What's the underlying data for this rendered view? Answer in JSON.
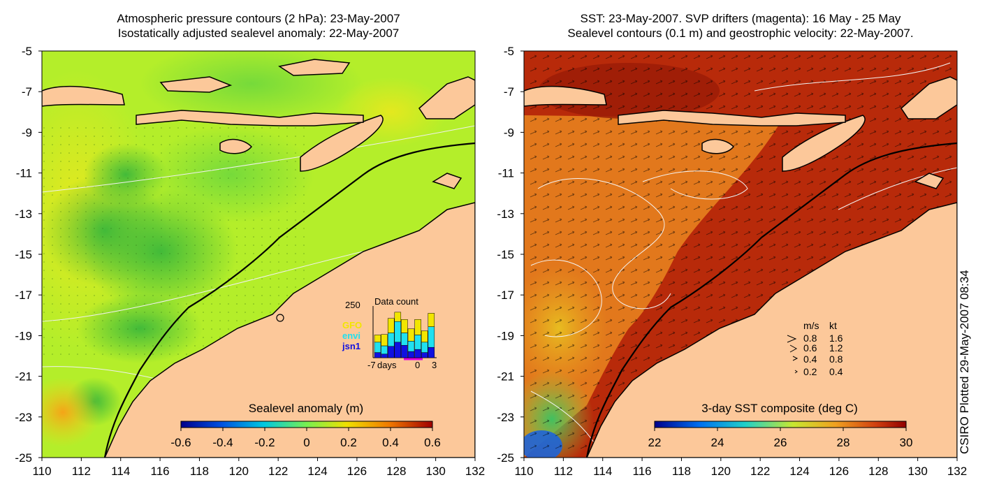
{
  "left_panel": {
    "title_line1": "Atmospheric pressure contours (2 hPa): 23-May-2007",
    "title_line2": "Isostatically adjusted sealevel anomaly: 22-May-2007",
    "colorbar_label": "Sealevel anomaly (m)",
    "colorbar_ticks": [
      "-0.6",
      "-0.4",
      "-0.2",
      "0",
      "0.2",
      "0.4",
      "0.6"
    ],
    "inset": {
      "title": "Data count",
      "y_max_label": "250",
      "x_label": "days",
      "x_ticks": [
        "-7",
        "0",
        "3"
      ],
      "legend": [
        {
          "name": "GFO",
          "color": "#f2e600"
        },
        {
          "name": "envi",
          "color": "#20e0f0"
        },
        {
          "name": "jsn1",
          "color": "#1010e0"
        }
      ]
    },
    "colors": {
      "ocean": "#b4ee2a",
      "land": "#fcc89a",
      "coast": "#000000"
    }
  },
  "right_panel": {
    "title_line1": "SST: 23-May-2007. SVP drifters (magenta): 16 May - 25 May",
    "title_line2": "Sealevel contours (0.1 m) and geostrophic velocity: 22-May-2007.",
    "colorbar_label": "3-day SST composite (deg C)",
    "colorbar_ticks": [
      "22",
      "24",
      "26",
      "28",
      "30"
    ],
    "speed_legend": {
      "header_ms": "m/s",
      "header_kt": "kt",
      "rows": [
        {
          "ms": "0.8",
          "kt": "1.6"
        },
        {
          "ms": "0.6",
          "kt": "1.2"
        },
        {
          "ms": "0.4",
          "kt": "0.8"
        },
        {
          "ms": "0.2",
          "kt": "0.4"
        }
      ]
    },
    "colors": {
      "warm": "#b82a0a",
      "mid": "#e2781c",
      "land": "#fcc89a"
    }
  },
  "axes": {
    "lat_ticks": [
      "-5",
      "-7",
      "-9",
      "-11",
      "-13",
      "-15",
      "-17",
      "-19",
      "-21",
      "-23",
      "-25"
    ],
    "lon_ticks": [
      "110",
      "112",
      "114",
      "116",
      "118",
      "120",
      "122",
      "124",
      "126",
      "128",
      "130",
      "132"
    ]
  },
  "side_note": "CSIRO Plotted 29-May-2007 08:34"
}
